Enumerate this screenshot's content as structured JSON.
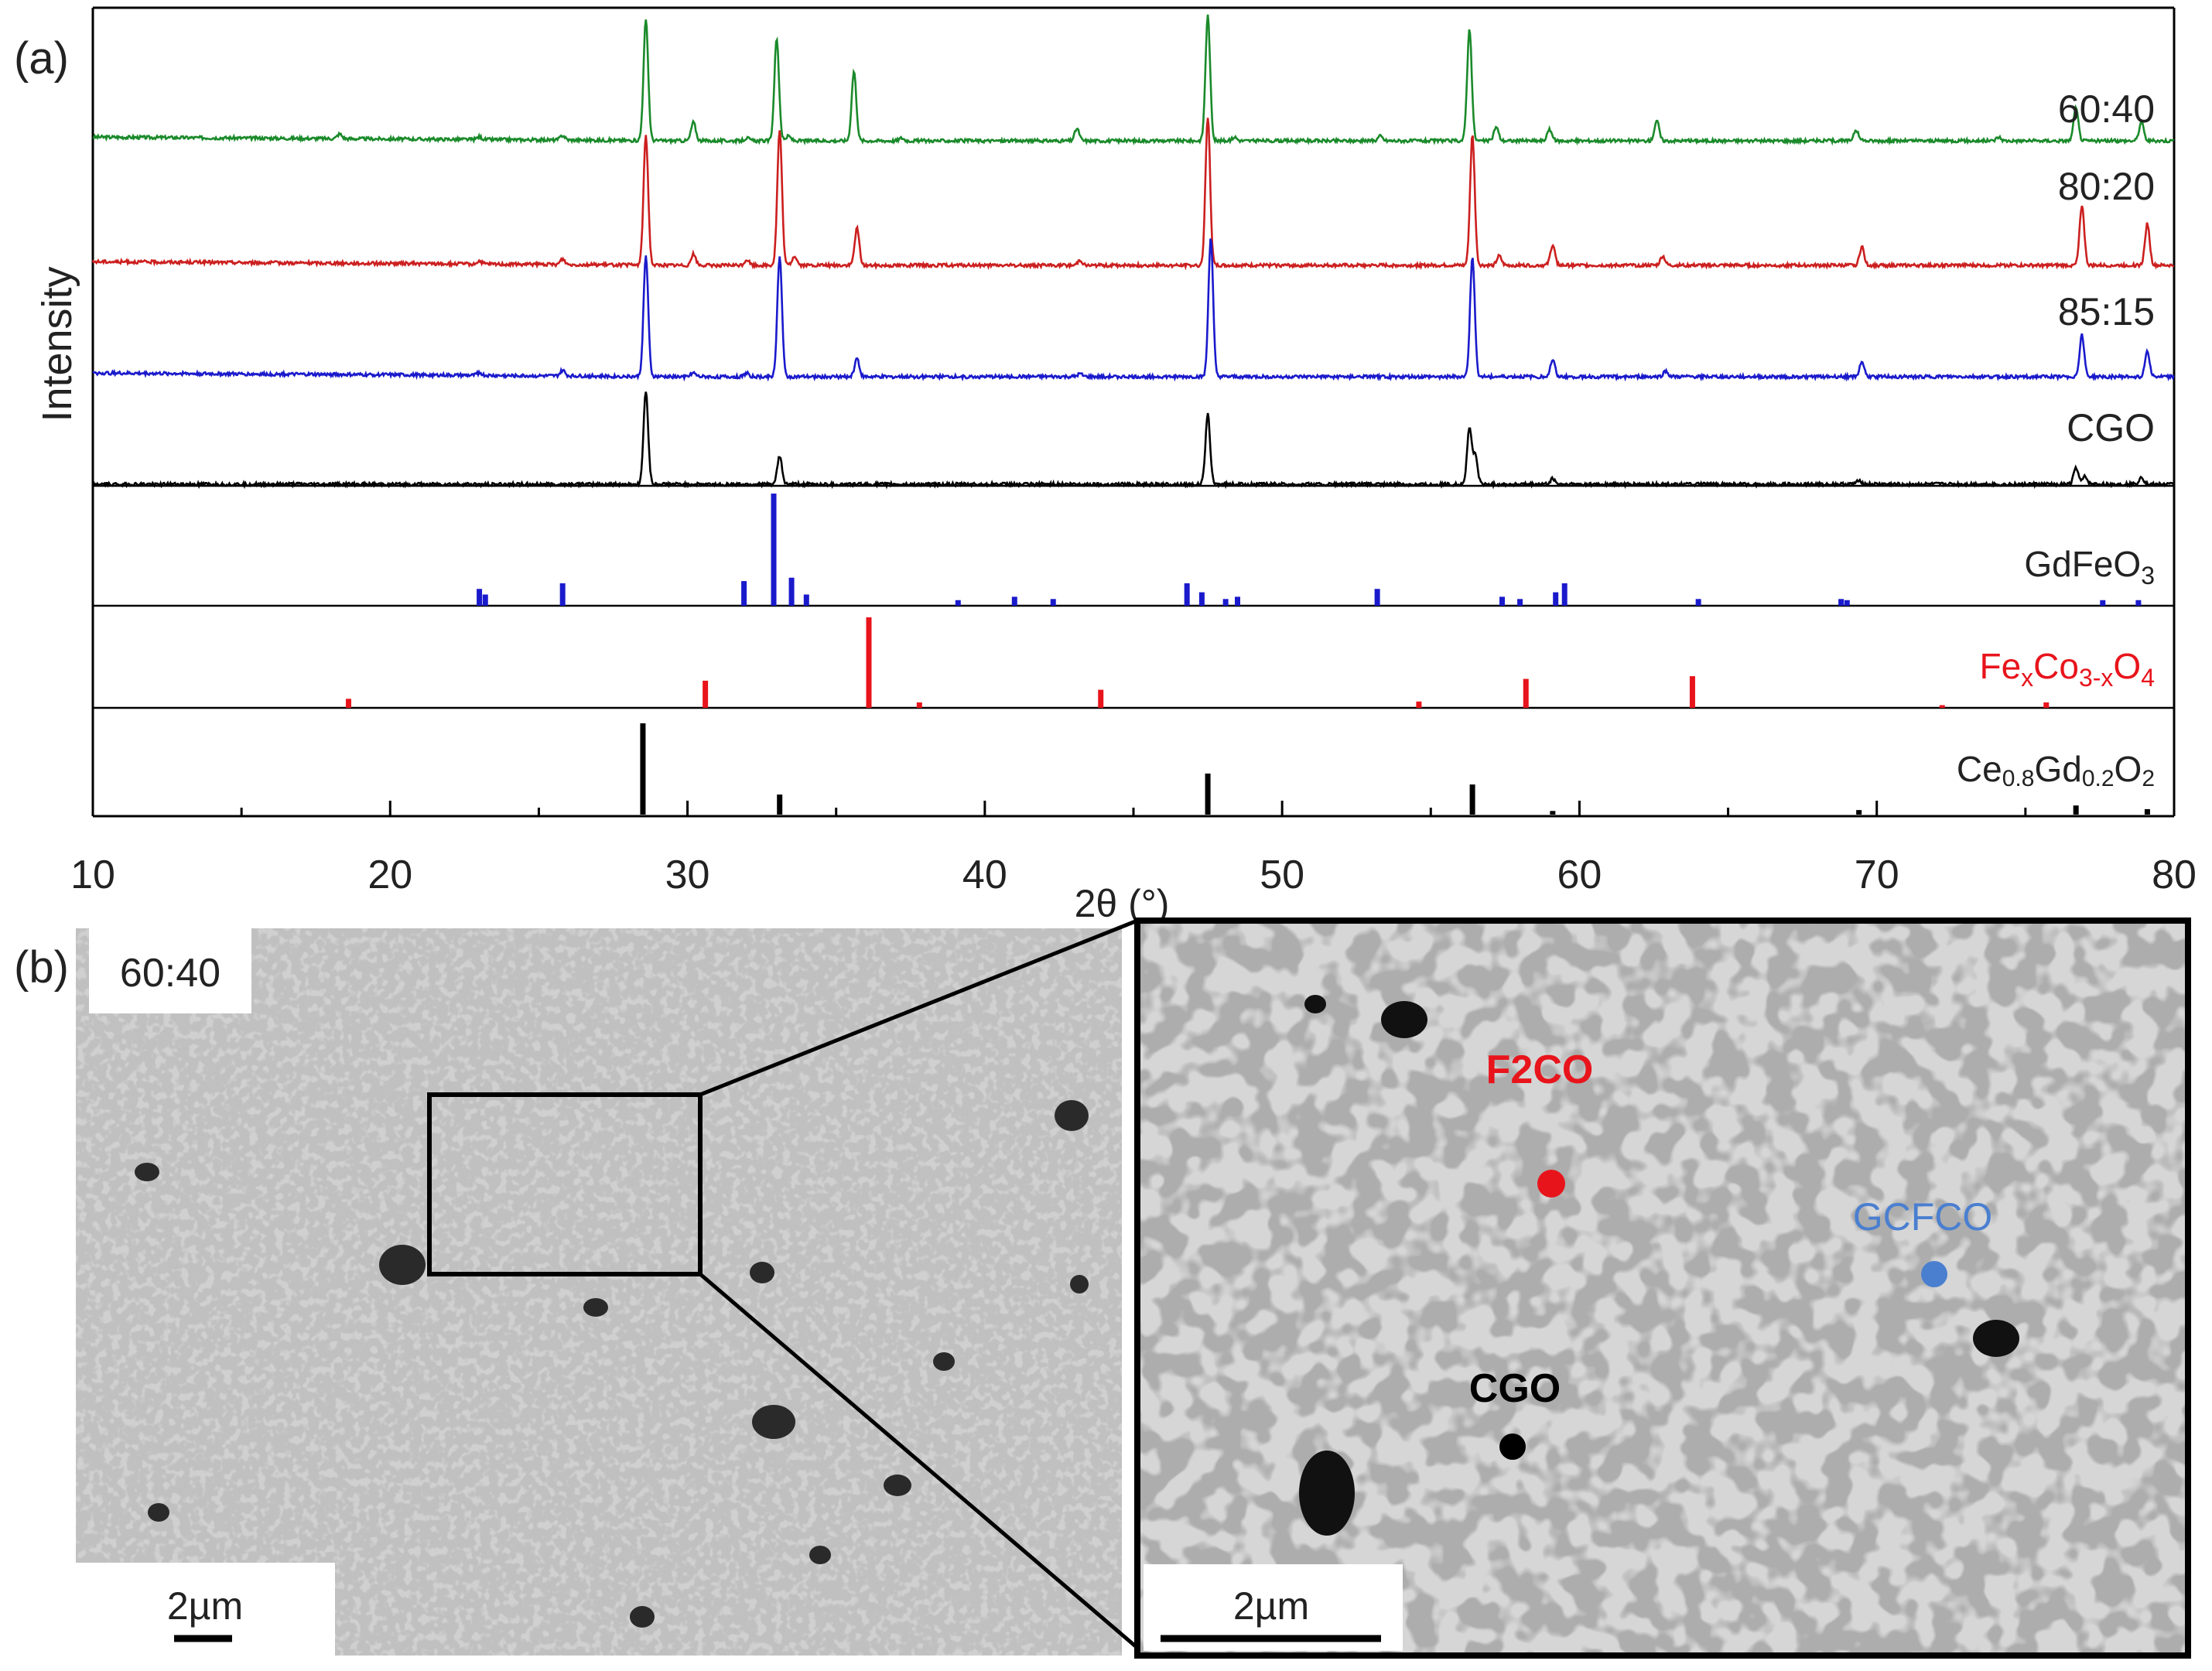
{
  "figure": {
    "panel_a_label": "(a)",
    "panel_b_label": "(b)",
    "b_inset_label": "60:40",
    "scale_bar_left": "2µm",
    "scale_bar_right": "2µm",
    "point_labels": [
      {
        "text": "F2CO",
        "color": "#e8141c"
      },
      {
        "text": "GCFCO",
        "color": "#4a7fd0"
      },
      {
        "text": "CGO",
        "color": "#000000"
      }
    ]
  },
  "chart_data": {
    "type": "line",
    "ylabel": "Intensity",
    "xlabel": "2θ (°)",
    "xlim": [
      10,
      80
    ],
    "xticks": [
      10,
      20,
      30,
      40,
      50,
      60,
      70,
      80
    ],
    "series": [
      {
        "name": "60:40",
        "color": "#1a8a2a",
        "peaks": [
          [
            18.3,
            0.05
          ],
          [
            23,
            0.03
          ],
          [
            25.8,
            0.05
          ],
          [
            28.6,
            1.3
          ],
          [
            30.2,
            0.2
          ],
          [
            32,
            0.03
          ],
          [
            33.0,
            1.1
          ],
          [
            33.4,
            0.05
          ],
          [
            35.6,
            0.75
          ],
          [
            37.2,
            0.03
          ],
          [
            43.1,
            0.13
          ],
          [
            47.5,
            1.35
          ],
          [
            48.4,
            0.04
          ],
          [
            53.3,
            0.05
          ],
          [
            56.3,
            1.2
          ],
          [
            57.2,
            0.15
          ],
          [
            59.0,
            0.12
          ],
          [
            62.6,
            0.22
          ],
          [
            69.3,
            0.12
          ],
          [
            74.1,
            0.04
          ],
          [
            76.7,
            0.35
          ],
          [
            78.9,
            0.2
          ]
        ]
      },
      {
        "name": "80:20",
        "color": "#cc1f1f",
        "peaks": [
          [
            23,
            0.03
          ],
          [
            25.8,
            0.06
          ],
          [
            28.6,
            1.4
          ],
          [
            30.2,
            0.12
          ],
          [
            32,
            0.06
          ],
          [
            33.1,
            1.45
          ],
          [
            33.6,
            0.1
          ],
          [
            35.7,
            0.4
          ],
          [
            43.2,
            0.06
          ],
          [
            47.5,
            1.6
          ],
          [
            56.4,
            1.4
          ],
          [
            57.3,
            0.1
          ],
          [
            59.1,
            0.22
          ],
          [
            62.8,
            0.1
          ],
          [
            69.5,
            0.2
          ],
          [
            76.9,
            0.65
          ],
          [
            79.1,
            0.45
          ]
        ]
      },
      {
        "name": "85:15",
        "color": "#1a1acc",
        "peaks": [
          [
            23,
            0.03
          ],
          [
            25.8,
            0.06
          ],
          [
            28.6,
            1.3
          ],
          [
            30.2,
            0.04
          ],
          [
            32,
            0.04
          ],
          [
            33.1,
            1.3
          ],
          [
            35.7,
            0.2
          ],
          [
            43.2,
            0.03
          ],
          [
            47.6,
            1.5
          ],
          [
            56.4,
            1.3
          ],
          [
            59.1,
            0.18
          ],
          [
            62.9,
            0.06
          ],
          [
            69.5,
            0.16
          ],
          [
            76.9,
            0.45
          ],
          [
            79.1,
            0.28
          ]
        ]
      },
      {
        "name": "CGO",
        "color": "#000000",
        "peaks": [
          [
            28.6,
            1.0
          ],
          [
            33.1,
            0.3
          ],
          [
            47.5,
            0.75
          ],
          [
            56.3,
            0.6
          ],
          [
            56.5,
            0.3
          ],
          [
            59.1,
            0.06
          ],
          [
            69.4,
            0.05
          ],
          [
            76.7,
            0.18
          ],
          [
            77.0,
            0.08
          ],
          [
            78.9,
            0.08
          ]
        ]
      }
    ],
    "references": [
      {
        "name": "GdFeO3",
        "label_main": "GdFeO",
        "label_sub": "3",
        "color": "#1a1acc",
        "sticks": [
          [
            23.0,
            0.15
          ],
          [
            23.2,
            0.1
          ],
          [
            25.8,
            0.2
          ],
          [
            31.9,
            0.22
          ],
          [
            32.9,
            1.0
          ],
          [
            33.5,
            0.25
          ],
          [
            34.0,
            0.1
          ],
          [
            39.1,
            0.05
          ],
          [
            41.0,
            0.08
          ],
          [
            42.3,
            0.06
          ],
          [
            46.8,
            0.2
          ],
          [
            47.3,
            0.12
          ],
          [
            48.1,
            0.06
          ],
          [
            48.5,
            0.08
          ],
          [
            53.2,
            0.15
          ],
          [
            57.4,
            0.08
          ],
          [
            58.0,
            0.06
          ],
          [
            59.2,
            0.12
          ],
          [
            59.5,
            0.2
          ],
          [
            64.0,
            0.06
          ],
          [
            68.8,
            0.06
          ],
          [
            69.0,
            0.05
          ],
          [
            77.6,
            0.05
          ],
          [
            78.8,
            0.05
          ]
        ]
      },
      {
        "name": "FexCo3-xO4",
        "label_parts": [
          "Fe",
          "x",
          "Co",
          "3-x",
          "O",
          "4"
        ],
        "color": "#e8141c",
        "sticks": [
          [
            18.6,
            0.1
          ],
          [
            30.6,
            0.3
          ],
          [
            36.1,
            1.0
          ],
          [
            37.8,
            0.06
          ],
          [
            43.9,
            0.2
          ],
          [
            54.6,
            0.07
          ],
          [
            58.2,
            0.32
          ],
          [
            63.8,
            0.35
          ],
          [
            72.2,
            0.03
          ],
          [
            75.7,
            0.06
          ]
        ]
      },
      {
        "name": "Ce0.8Gd0.2O2",
        "label_parts": [
          "Ce",
          "0.8",
          "Gd",
          "0.2",
          "O",
          "2"
        ],
        "color": "#000000",
        "sticks": [
          [
            28.5,
            1.0
          ],
          [
            33.1,
            0.22
          ],
          [
            47.5,
            0.45
          ],
          [
            56.4,
            0.33
          ],
          [
            59.1,
            0.04
          ],
          [
            69.4,
            0.05
          ],
          [
            76.7,
            0.1
          ],
          [
            79.1,
            0.06
          ]
        ]
      }
    ]
  }
}
